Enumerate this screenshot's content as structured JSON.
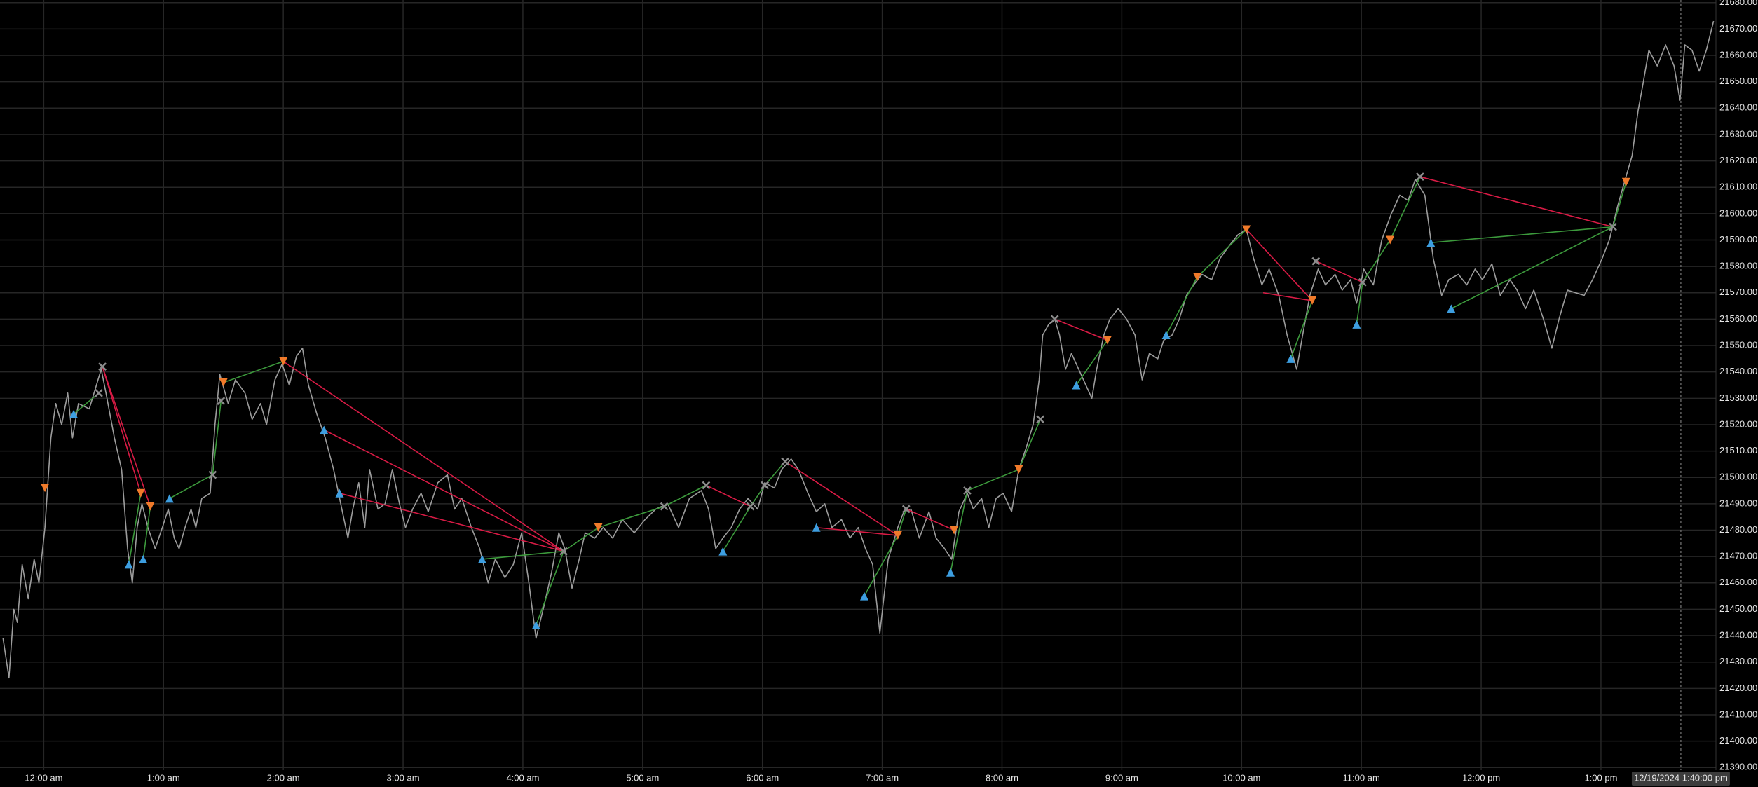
{
  "chart_data": {
    "type": "line",
    "xlim": [
      -0.365,
      13.96
    ],
    "ylim": [
      21389,
      21681
    ],
    "grid": true,
    "grid_color": "#262626",
    "xticks": [
      {
        "value": 0,
        "label": "12:00 am"
      },
      {
        "value": 1,
        "label": "1:00 am"
      },
      {
        "value": 2,
        "label": "2:00 am"
      },
      {
        "value": 3,
        "label": "3:00 am"
      },
      {
        "value": 4,
        "label": "4:00 am"
      },
      {
        "value": 5,
        "label": "5:00 am"
      },
      {
        "value": 6,
        "label": "6:00 am"
      },
      {
        "value": 7,
        "label": "7:00 am"
      },
      {
        "value": 8,
        "label": "8:00 am"
      },
      {
        "value": 9,
        "label": "9:00 am"
      },
      {
        "value": 10,
        "label": "10:00 am"
      },
      {
        "value": 11,
        "label": "11:00 am"
      },
      {
        "value": 12,
        "label": "12:00 pm"
      },
      {
        "value": 13,
        "label": "1:00 pm"
      }
    ],
    "yticks": [
      {
        "value": 21390,
        "label": "21390.00"
      },
      {
        "value": 21400,
        "label": "21400.00"
      },
      {
        "value": 21410,
        "label": "21410.00"
      },
      {
        "value": 21420,
        "label": "21420.00"
      },
      {
        "value": 21430,
        "label": "21430.00"
      },
      {
        "value": 21440,
        "label": "21440.00"
      },
      {
        "value": 21450,
        "label": "21450.00"
      },
      {
        "value": 21460,
        "label": "21460.00"
      },
      {
        "value": 21470,
        "label": "21470.00"
      },
      {
        "value": 21480,
        "label": "21480.00"
      },
      {
        "value": 21490,
        "label": "21490.00"
      },
      {
        "value": 21500,
        "label": "21500.00"
      },
      {
        "value": 21510,
        "label": "21510.00"
      },
      {
        "value": 21520,
        "label": "21520.00"
      },
      {
        "value": 21530,
        "label": "21530.00"
      },
      {
        "value": 21540,
        "label": "21540.00"
      },
      {
        "value": 21550,
        "label": "21550.00"
      },
      {
        "value": 21560,
        "label": "21560.00"
      },
      {
        "value": 21570,
        "label": "21570.00"
      },
      {
        "value": 21580,
        "label": "21580.00"
      },
      {
        "value": 21590,
        "label": "21590.00"
      },
      {
        "value": 21600,
        "label": "21600.00"
      },
      {
        "value": 21610,
        "label": "21610.00"
      },
      {
        "value": 21620,
        "label": "21620.00"
      },
      {
        "value": 21630,
        "label": "21630.00"
      },
      {
        "value": 21640,
        "label": "21640.00"
      },
      {
        "value": 21650,
        "label": "21650.00"
      },
      {
        "value": 21660,
        "label": "21660.00"
      },
      {
        "value": 21670,
        "label": "21670.00"
      },
      {
        "value": 21680,
        "label": "21680.00"
      }
    ],
    "x": [
      -0.34,
      -0.29,
      -0.25,
      -0.22,
      -0.18,
      -0.13,
      -0.08,
      -0.04,
      0.01,
      0.06,
      0.1,
      0.15,
      0.2,
      0.24,
      0.29,
      0.38,
      0.48,
      0.52,
      0.59,
      0.65,
      0.7,
      0.74,
      0.78,
      0.82,
      0.87,
      0.93,
      0.99,
      1.04,
      1.09,
      1.13,
      1.18,
      1.23,
      1.27,
      1.32,
      1.39,
      1.43,
      1.47,
      1.54,
      1.6,
      1.68,
      1.74,
      1.81,
      1.86,
      1.93,
      1.99,
      2.05,
      2.11,
      2.16,
      2.21,
      2.28,
      2.35,
      2.42,
      2.47,
      2.54,
      2.58,
      2.63,
      2.68,
      2.72,
      2.79,
      2.85,
      2.91,
      2.97,
      3.02,
      3.08,
      3.15,
      3.21,
      3.29,
      3.37,
      3.43,
      3.49,
      3.57,
      3.64,
      3.71,
      3.77,
      3.85,
      3.92,
      3.99,
      4.05,
      4.11,
      4.18,
      4.24,
      4.3,
      4.35,
      4.41,
      4.47,
      4.52,
      4.6,
      4.67,
      4.75,
      4.83,
      4.93,
      5.02,
      5.11,
      5.21,
      5.3,
      5.39,
      5.49,
      5.55,
      5.61,
      5.67,
      5.74,
      5.81,
      5.88,
      5.96,
      6.02,
      6.1,
      6.16,
      6.24,
      6.3,
      6.38,
      6.45,
      6.52,
      6.58,
      6.66,
      6.73,
      6.8,
      6.86,
      6.92,
      6.98,
      7.05,
      7.13,
      7.18,
      7.24,
      7.31,
      7.39,
      7.45,
      7.52,
      7.58,
      7.64,
      7.71,
      7.76,
      7.83,
      7.89,
      7.95,
      8.01,
      8.08,
      8.14,
      8.2,
      8.26,
      8.31,
      8.34,
      8.39,
      8.44,
      8.48,
      8.53,
      8.58,
      8.64,
      8.7,
      8.75,
      8.79,
      8.85,
      8.9,
      8.97,
      9.04,
      9.11,
      9.17,
      9.23,
      9.3,
      9.35,
      9.42,
      9.48,
      9.54,
      9.6,
      9.67,
      9.75,
      9.82,
      9.9,
      9.97,
      10.04,
      10.1,
      10.17,
      10.23,
      10.31,
      10.38,
      10.46,
      10.51,
      10.57,
      10.64,
      10.7,
      10.78,
      10.84,
      10.91,
      10.96,
      11.02,
      11.1,
      11.17,
      11.25,
      11.32,
      11.39,
      11.45,
      11.53,
      11.6,
      11.67,
      11.73,
      11.81,
      11.88,
      11.95,
      12.01,
      12.09,
      12.16,
      12.24,
      12.3,
      12.37,
      12.44,
      12.52,
      12.59,
      12.65,
      12.72,
      12.79,
      12.86,
      12.93,
      13.01,
      13.07,
      13.14,
      13.19,
      13.26,
      13.31,
      13.35,
      13.4,
      13.47,
      13.54,
      13.61,
      13.66,
      13.7,
      13.76,
      13.82,
      13.88,
      13.94
    ],
    "series": [
      {
        "color": "#9c9c9c",
        "values": [
          21439,
          21424,
          21450,
          21445,
          21467,
          21454,
          21469,
          21460,
          21481,
          21515,
          21528,
          21520,
          21532,
          21515,
          21528,
          21526,
          21541,
          21532,
          21515,
          21503,
          21473,
          21460,
          21481,
          21490,
          21481,
          21473,
          21481,
          21488,
          21477,
          21473,
          21481,
          21488,
          21481,
          21492,
          21494,
          21520,
          21539,
          21528,
          21537,
          21532,
          21522,
          21528,
          21520,
          21537,
          21543,
          21535,
          21546,
          21549,
          21535,
          21524,
          21515,
          21503,
          21492,
          21477,
          21488,
          21498,
          21481,
          21503,
          21488,
          21490,
          21503,
          21490,
          21481,
          21488,
          21494,
          21487,
          21498,
          21501,
          21488,
          21492,
          21481,
          21473,
          21460,
          21469,
          21462,
          21467,
          21479,
          21460,
          21439,
          21452,
          21464,
          21479,
          21473,
          21458,
          21469,
          21479,
          21477,
          21481,
          21477,
          21484,
          21479,
          21484,
          21488,
          21490,
          21481,
          21492,
          21495,
          21488,
          21473,
          21477,
          21481,
          21488,
          21492,
          21488,
          21498,
          21496,
          21503,
          21507,
          21503,
          21494,
          21487,
          21490,
          21481,
          21484,
          21477,
          21481,
          21473,
          21467,
          21441,
          21469,
          21481,
          21487,
          21488,
          21477,
          21487,
          21477,
          21473,
          21469,
          21487,
          21494,
          21488,
          21492,
          21481,
          21492,
          21494,
          21487,
          21503,
          21511,
          21520,
          21537,
          21554,
          21558,
          21560,
          21554,
          21541,
          21547,
          21541,
          21535,
          21530,
          21541,
          21554,
          21560,
          21564,
          21560,
          21554,
          21537,
          21547,
          21545,
          21552,
          21554,
          21560,
          21569,
          21573,
          21577,
          21575,
          21583,
          21588,
          21592,
          21594,
          21583,
          21573,
          21579,
          21569,
          21554,
          21541,
          21554,
          21569,
          21579,
          21573,
          21577,
          21571,
          21575,
          21566,
          21579,
          21573,
          21590,
          21600,
          21607,
          21605,
          21613,
          21607,
          21583,
          21569,
          21575,
          21577,
          21573,
          21579,
          21575,
          21581,
          21569,
          21575,
          21571,
          21564,
          21571,
          21560,
          21549,
          21560,
          21571,
          21570,
          21569,
          21575,
          21583,
          21590,
          21603,
          21611,
          21622,
          21639,
          21649,
          21662,
          21656,
          21664,
          21656,
          21643,
          21664,
          21662,
          21654,
          21662,
          21673
        ]
      }
    ],
    "trades": [
      {
        "x": [
          0.25,
          0.46
        ],
        "y": [
          21524,
          21532
        ],
        "color": "#3c9a3c"
      },
      {
        "x": [
          0.49,
          0.81
        ],
        "y": [
          21542,
          21494
        ],
        "color": "#d81b45"
      },
      {
        "x": [
          0.49,
          0.89
        ],
        "y": [
          21542,
          21489
        ],
        "color": "#d81b45"
      },
      {
        "x": [
          0.71,
          0.81
        ],
        "y": [
          21467,
          21494
        ],
        "color": "#3c9a3c"
      },
      {
        "x": [
          0.83,
          0.89
        ],
        "y": [
          21469,
          21489
        ],
        "color": "#3c9a3c"
      },
      {
        "x": [
          1.05,
          1.41
        ],
        "y": [
          21492,
          21501
        ],
        "color": "#3c9a3c"
      },
      {
        "x": [
          1.41,
          1.48
        ],
        "y": [
          21501,
          21529
        ],
        "color": "#3c9a3c"
      },
      {
        "x": [
          1.5,
          2.0
        ],
        "y": [
          21536,
          21544
        ],
        "color": "#3c9a3c"
      },
      {
        "x": [
          2.0,
          4.34
        ],
        "y": [
          21544,
          21472
        ],
        "color": "#d81b45"
      },
      {
        "x": [
          2.34,
          4.34
        ],
        "y": [
          21518,
          21472
        ],
        "color": "#d81b45"
      },
      {
        "x": [
          2.47,
          4.34
        ],
        "y": [
          21494,
          21472
        ],
        "color": "#d81b45"
      },
      {
        "x": [
          3.66,
          4.34
        ],
        "y": [
          21469,
          21472
        ],
        "color": "#3c9a3c"
      },
      {
        "x": [
          4.11,
          4.34
        ],
        "y": [
          21444,
          21472
        ],
        "color": "#3c9a3c"
      },
      {
        "x": [
          4.34,
          4.63
        ],
        "y": [
          21472,
          21481
        ],
        "color": "#3c9a3c"
      },
      {
        "x": [
          4.63,
          5.18
        ],
        "y": [
          21481,
          21489
        ],
        "color": "#3c9a3c"
      },
      {
        "x": [
          5.18,
          5.53
        ],
        "y": [
          21489,
          21497
        ],
        "color": "#3c9a3c"
      },
      {
        "x": [
          5.53,
          5.9
        ],
        "y": [
          21497,
          21489
        ],
        "color": "#d81b45"
      },
      {
        "x": [
          5.67,
          5.9
        ],
        "y": [
          21472,
          21489
        ],
        "color": "#3c9a3c"
      },
      {
        "x": [
          5.9,
          6.02
        ],
        "y": [
          21489,
          21497
        ],
        "color": "#3c9a3c"
      },
      {
        "x": [
          6.02,
          6.19
        ],
        "y": [
          21497,
          21506
        ],
        "color": "#3c9a3c"
      },
      {
        "x": [
          6.19,
          7.13
        ],
        "y": [
          21506,
          21478
        ],
        "color": "#d81b45"
      },
      {
        "x": [
          6.45,
          7.13
        ],
        "y": [
          21481,
          21478
        ],
        "color": "#d81b45"
      },
      {
        "x": [
          6.85,
          7.13
        ],
        "y": [
          21455,
          21478
        ],
        "color": "#3c9a3c"
      },
      {
        "x": [
          7.13,
          7.2
        ],
        "y": [
          21478,
          21488
        ],
        "color": "#3c9a3c"
      },
      {
        "x": [
          7.2,
          7.6
        ],
        "y": [
          21488,
          21480
        ],
        "color": "#d81b45"
      },
      {
        "x": [
          7.57,
          7.71
        ],
        "y": [
          21464,
          21495
        ],
        "color": "#3c9a3c"
      },
      {
        "x": [
          7.71,
          8.14
        ],
        "y": [
          21495,
          21503
        ],
        "color": "#3c9a3c"
      },
      {
        "x": [
          8.14,
          8.32
        ],
        "y": [
          21503,
          21522
        ],
        "color": "#3c9a3c"
      },
      {
        "x": [
          8.44,
          8.88
        ],
        "y": [
          21560,
          21552
        ],
        "color": "#d81b45"
      },
      {
        "x": [
          8.62,
          8.88
        ],
        "y": [
          21535,
          21552
        ],
        "color": "#3c9a3c"
      },
      {
        "x": [
          9.37,
          9.63
        ],
        "y": [
          21554,
          21576
        ],
        "color": "#3c9a3c"
      },
      {
        "x": [
          9.63,
          10.04
        ],
        "y": [
          21576,
          21594
        ],
        "color": "#3c9a3c"
      },
      {
        "x": [
          10.04,
          10.59
        ],
        "y": [
          21594,
          21567
        ],
        "color": "#d81b45"
      },
      {
        "x": [
          10.18,
          10.59
        ],
        "y": [
          21570,
          21567
        ],
        "color": "#d81b45"
      },
      {
        "x": [
          10.41,
          10.59
        ],
        "y": [
          21545,
          21567
        ],
        "color": "#3c9a3c"
      },
      {
        "x": [
          10.62,
          11.01
        ],
        "y": [
          21582,
          21574
        ],
        "color": "#d81b45"
      },
      {
        "x": [
          10.96,
          11.01
        ],
        "y": [
          21558,
          21574
        ],
        "color": "#3c9a3c"
      },
      {
        "x": [
          11.01,
          11.24
        ],
        "y": [
          21574,
          21590
        ],
        "color": "#3c9a3c"
      },
      {
        "x": [
          11.24,
          11.49
        ],
        "y": [
          21590,
          21614
        ],
        "color": "#3c9a3c"
      },
      {
        "x": [
          11.49,
          13.1
        ],
        "y": [
          21614,
          21595
        ],
        "color": "#d81b45"
      },
      {
        "x": [
          11.58,
          13.1
        ],
        "y": [
          21589,
          21595
        ],
        "color": "#3c9a3c"
      },
      {
        "x": [
          11.75,
          13.1
        ],
        "y": [
          21564,
          21595
        ],
        "color": "#3c9a3c"
      },
      {
        "x": [
          13.1,
          13.21
        ],
        "y": [
          21595,
          21612
        ],
        "color": "#3c9a3c"
      }
    ],
    "markers": [
      {
        "shape": "triangle-up",
        "color": "#3d9ee0",
        "x": [
          0.25,
          0.71,
          0.83,
          1.05,
          2.34,
          2.47,
          3.66,
          4.11,
          5.67,
          6.45,
          6.85,
          7.57,
          8.62,
          9.37,
          10.41,
          10.96,
          11.58,
          11.75
        ],
        "y": [
          21524,
          21467,
          21469,
          21492,
          21518,
          21494,
          21469,
          21444,
          21472,
          21481,
          21455,
          21464,
          21535,
          21554,
          21545,
          21558,
          21589,
          21564
        ]
      },
      {
        "shape": "triangle-down",
        "color": "#f07a2a",
        "x": [
          0.01,
          0.81,
          0.89,
          1.5,
          2.0,
          4.63,
          7.13,
          7.6,
          8.14,
          8.88,
          9.63,
          10.04,
          10.59,
          11.24,
          13.21
        ],
        "y": [
          21496,
          21494,
          21489,
          21536,
          21544,
          21481,
          21478,
          21480,
          21503,
          21552,
          21576,
          21594,
          21567,
          21590,
          21612
        ]
      },
      {
        "shape": "cross",
        "color": "#8c8c8c",
        "x": [
          0.46,
          0.49,
          1.41,
          1.48,
          4.34,
          5.18,
          5.53,
          5.9,
          6.02,
          6.19,
          7.2,
          7.71,
          8.32,
          8.44,
          10.62,
          11.01,
          11.49,
          13.1
        ],
        "y": [
          21532,
          21542,
          21501,
          21529,
          21472,
          21489,
          21497,
          21489,
          21497,
          21506,
          21488,
          21495,
          21522,
          21560,
          21582,
          21574,
          21614,
          21595
        ]
      }
    ],
    "cursor": {
      "x": 13.667,
      "label": "12/19/2024 1:40:00 pm"
    }
  }
}
